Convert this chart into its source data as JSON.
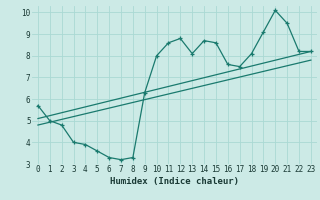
{
  "title": "",
  "xlabel": "Humidex (Indice chaleur)",
  "xlim": [
    -0.5,
    23.5
  ],
  "ylim": [
    3,
    10.3
  ],
  "yticks": [
    3,
    4,
    5,
    6,
    7,
    8,
    9,
    10
  ],
  "xticks": [
    0,
    1,
    2,
    3,
    4,
    5,
    6,
    7,
    8,
    9,
    10,
    11,
    12,
    13,
    14,
    15,
    16,
    17,
    18,
    19,
    20,
    21,
    22,
    23
  ],
  "bg_color": "#cceae6",
  "line_color": "#1a7a6e",
  "grid_color": "#aad9d4",
  "line1_x": [
    0,
    1,
    2,
    3,
    4,
    5,
    6,
    7,
    8,
    9,
    10,
    11,
    12,
    13,
    14,
    15,
    16,
    17,
    18,
    19,
    20,
    21,
    22,
    23
  ],
  "line1_y": [
    5.7,
    5.0,
    4.8,
    4.0,
    3.9,
    3.6,
    3.3,
    3.2,
    3.3,
    6.3,
    8.0,
    8.6,
    8.8,
    8.1,
    8.7,
    8.6,
    7.6,
    7.5,
    8.1,
    9.1,
    10.1,
    9.5,
    8.2,
    8.2
  ],
  "line2_x": [
    0,
    23
  ],
  "line2_y": [
    5.1,
    8.2
  ],
  "line3_x": [
    0,
    23
  ],
  "line3_y": [
    4.8,
    7.8
  ]
}
